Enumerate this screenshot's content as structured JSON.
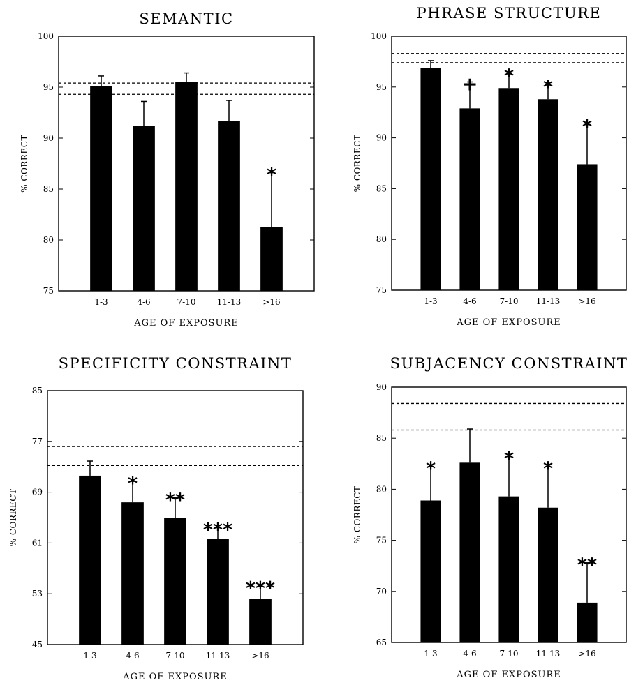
{
  "chart_data": [
    {
      "type": "bar",
      "title": "SEMANTIC",
      "xlabel": "AGE OF EXPOSURE",
      "ylabel": "% CORRECT",
      "categories": [
        "1-3",
        "4-6",
        "7-10",
        "11-13",
        ">16"
      ],
      "values": [
        95.1,
        91.2,
        95.5,
        91.7,
        81.3
      ],
      "errors": [
        1.0,
        2.4,
        0.9,
        2.0,
        5.3
      ],
      "annotations": [
        "",
        "",
        "",
        "",
        "*"
      ],
      "reference_lines": [
        95.4,
        94.3
      ],
      "ylim": [
        75,
        100
      ],
      "yticks": [
        75,
        80,
        85,
        90,
        95,
        100
      ]
    },
    {
      "type": "bar",
      "title": "PHRASE STRUCTURE",
      "xlabel": "AGE OF EXPOSURE",
      "ylabel": "% CORRECT",
      "categories": [
        "1-3",
        "4-6",
        "7-10",
        "11-13",
        ">16"
      ],
      "values": [
        96.9,
        92.9,
        94.9,
        93.8,
        87.4
      ],
      "errors": [
        0.7,
        2.6,
        1.4,
        1.4,
        3.9
      ],
      "annotations": [
        "",
        "+",
        "*",
        "*",
        "*"
      ],
      "reference_lines": [
        98.3,
        97.4
      ],
      "ylim": [
        75,
        100
      ],
      "yticks": [
        75,
        80,
        85,
        90,
        95,
        100
      ]
    },
    {
      "type": "bar",
      "title": "SPECIFICITY CONSTRAINT",
      "xlabel": "AGE OF EXPOSURE",
      "ylabel": "% CORRECT",
      "categories": [
        "1-3",
        "4-6",
        "7-10",
        "11-13",
        ">16"
      ],
      "values": [
        71.6,
        67.4,
        65.0,
        61.6,
        52.2
      ],
      "errors": [
        2.3,
        3.3,
        3.1,
        1.8,
        2.0
      ],
      "annotations": [
        "",
        "*",
        "**",
        "***",
        "***"
      ],
      "reference_lines": [
        76.2,
        73.2
      ],
      "ylim": [
        45,
        85
      ],
      "yticks": [
        45,
        53,
        61,
        69,
        77,
        85
      ]
    },
    {
      "type": "bar",
      "title": "SUBJACENCY CONSTRAINT",
      "xlabel": "AGE OF EXPOSURE",
      "ylabel": "% CORRECT",
      "categories": [
        "1-3",
        "4-6",
        "7-10",
        "11-13",
        ">16"
      ],
      "values": [
        78.9,
        82.6,
        79.3,
        78.2,
        68.9
      ],
      "errors": [
        3.3,
        3.3,
        3.9,
        4.0,
        3.9
      ],
      "annotations": [
        "*",
        "",
        "*",
        "*",
        "**"
      ],
      "reference_lines": [
        88.4,
        85.8
      ],
      "ylim": [
        65,
        90
      ],
      "yticks": [
        65,
        70,
        75,
        80,
        85,
        90
      ]
    }
  ]
}
